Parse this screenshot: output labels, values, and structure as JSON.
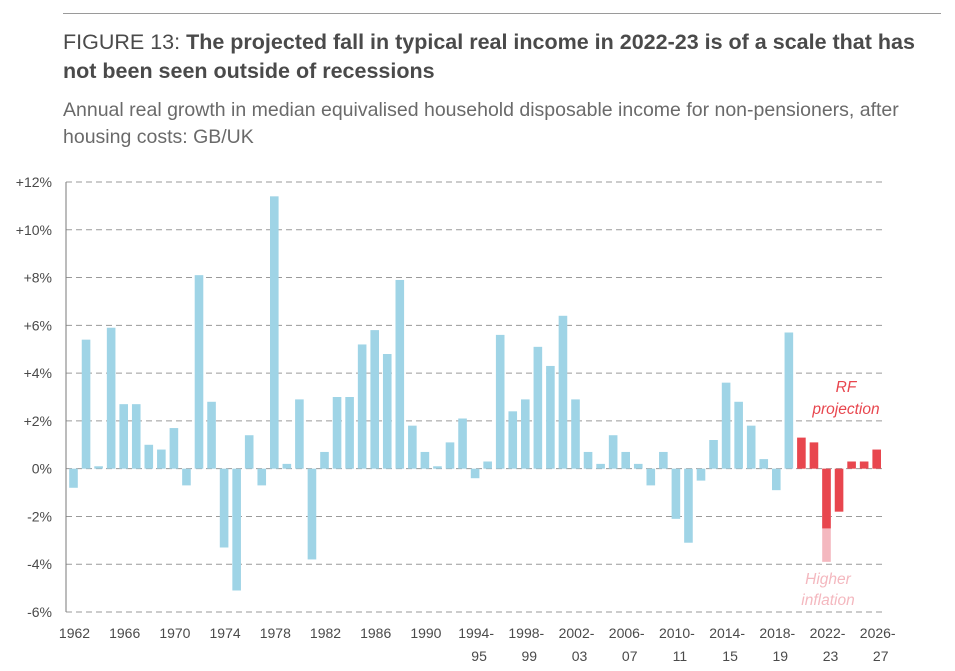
{
  "figure": {
    "label": "FIGURE 13: ",
    "title": "The projected fall in typical real income in 2022-23 is of a scale that has not been seen outside of recessions",
    "subtitle": "Annual real growth in median equivalised household disposable income for non-pensioners, after housing costs: GB/UK"
  },
  "colors": {
    "historical": "#9fd4e6",
    "projection": "#e8464e",
    "higher_inflation": "#f4b8bf",
    "projection_label": "#e8464e",
    "higher_inflation_label": "#f4b8bf",
    "grid": "#9a9a9a",
    "axis": "#7a7a7a",
    "text": "#4a4a4a"
  },
  "chart_data": {
    "type": "bar",
    "ylim": [
      -6,
      12
    ],
    "ytick_values": [
      12,
      10,
      8,
      6,
      4,
      2,
      0,
      -2,
      -4,
      -6
    ],
    "ytick_labels": [
      "+12%",
      "+10%",
      "+8%",
      "+6%",
      "+4%",
      "+2%",
      "0%",
      "-2%",
      "-4%",
      "-6%"
    ],
    "grid": "dashed horizontal",
    "xtick_labels": [
      {
        "index": 0,
        "line1": "1962",
        "line2": ""
      },
      {
        "index": 4,
        "line1": "1966",
        "line2": ""
      },
      {
        "index": 8,
        "line1": "1970",
        "line2": ""
      },
      {
        "index": 12,
        "line1": "1974",
        "line2": ""
      },
      {
        "index": 16,
        "line1": "1978",
        "line2": ""
      },
      {
        "index": 20,
        "line1": "1982",
        "line2": ""
      },
      {
        "index": 24,
        "line1": "1986",
        "line2": ""
      },
      {
        "index": 28,
        "line1": "1990",
        "line2": ""
      },
      {
        "index": 32,
        "line1": "1994-",
        "line2": "95"
      },
      {
        "index": 36,
        "line1": "1998-",
        "line2": "99"
      },
      {
        "index": 40,
        "line1": "2002-",
        "line2": "03"
      },
      {
        "index": 44,
        "line1": "2006-",
        "line2": "07"
      },
      {
        "index": 48,
        "line1": "2010-",
        "line2": "11"
      },
      {
        "index": 52,
        "line1": "2014-",
        "line2": "15"
      },
      {
        "index": 56,
        "line1": "2018-",
        "line2": "19"
      },
      {
        "index": 60,
        "line1": "2022-",
        "line2": "23"
      },
      {
        "index": 64,
        "line1": "2026-",
        "line2": "27"
      }
    ],
    "series": [
      {
        "values": [
          -0.8,
          5.4,
          0.1,
          5.9,
          2.7,
          2.7,
          1.0,
          0.8,
          1.7,
          -0.7,
          8.1,
          2.8,
          -3.3,
          -5.1,
          1.4,
          -0.7,
          11.4,
          0.2,
          2.9,
          -3.8,
          0.7,
          3.0,
          3.0,
          5.2,
          5.8,
          4.8,
          7.9,
          1.8,
          0.7,
          0.1,
          1.1,
          2.1,
          -0.4,
          0.3,
          5.6,
          2.4,
          2.9,
          5.1,
          4.3,
          6.4,
          2.9,
          0.7,
          0.2,
          1.4,
          0.7,
          0.2,
          -0.7,
          0.7,
          -2.1,
          -3.1,
          -0.5,
          1.2,
          3.6,
          2.8,
          1.8,
          0.4,
          -0.9,
          5.7
        ]
      },
      {
        "name": "RF projection",
        "start_index": 58,
        "values": [
          1.3,
          1.1,
          -2.5,
          -1.8,
          0.3,
          0.3,
          0.8
        ]
      },
      {
        "name": "Higher inflation",
        "start_index": 60,
        "values": [
          -3.9
        ]
      }
    ],
    "annotations": {
      "projection_line1": "RF",
      "projection_line2": "projection",
      "inflation_line1": "Higher",
      "inflation_line2": "inflation"
    }
  }
}
